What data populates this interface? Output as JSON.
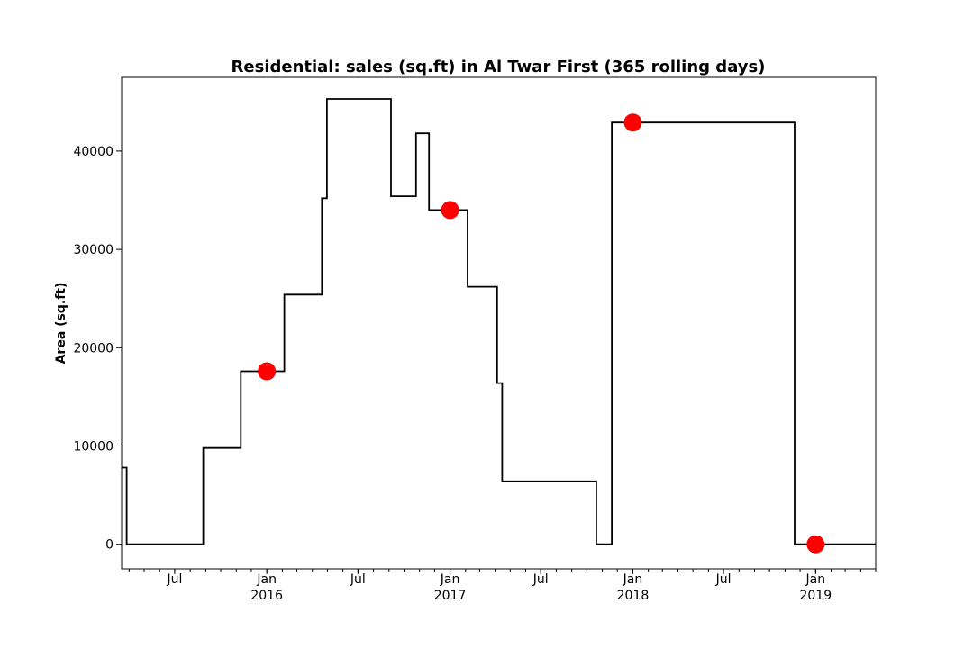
{
  "chart_data": {
    "type": "line",
    "title": "Residential: sales (sq.ft) in Al Twar First (365 rolling days)",
    "xlabel": "",
    "ylabel": "Area (sq.ft)",
    "xlim": [
      "2015-03-17",
      "2019-05-01"
    ],
    "ylim": [
      -2500,
      47500
    ],
    "step_line": {
      "color": "#000000",
      "points": [
        [
          "2015-03-17",
          7800
        ],
        [
          "2015-03-27",
          7800
        ],
        [
          "2015-03-27",
          0
        ],
        [
          "2015-08-27",
          0
        ],
        [
          "2015-08-27",
          9800
        ],
        [
          "2015-11-10",
          9800
        ],
        [
          "2015-11-10",
          17600
        ],
        [
          "2016-02-05",
          17600
        ],
        [
          "2016-02-05",
          25400
        ],
        [
          "2016-04-20",
          25400
        ],
        [
          "2016-04-20",
          35200
        ],
        [
          "2016-04-30",
          35200
        ],
        [
          "2016-04-30",
          45300
        ],
        [
          "2016-09-05",
          45300
        ],
        [
          "2016-09-05",
          35400
        ],
        [
          "2016-10-25",
          35400
        ],
        [
          "2016-10-25",
          41800
        ],
        [
          "2016-11-20",
          41800
        ],
        [
          "2016-11-20",
          34000
        ],
        [
          "2017-02-05",
          34000
        ],
        [
          "2017-02-05",
          26200
        ],
        [
          "2017-04-05",
          26200
        ],
        [
          "2017-04-05",
          16400
        ],
        [
          "2017-04-15",
          16400
        ],
        [
          "2017-04-15",
          6400
        ],
        [
          "2017-10-20",
          6400
        ],
        [
          "2017-10-20",
          0
        ],
        [
          "2017-11-20",
          0
        ],
        [
          "2017-11-20",
          42900
        ],
        [
          "2018-11-20",
          42900
        ],
        [
          "2018-11-20",
          0
        ],
        [
          "2019-05-01",
          0
        ]
      ]
    },
    "markers": {
      "color": "#ff0000",
      "points": [
        [
          "2016-01-01",
          17600
        ],
        [
          "2017-01-01",
          34000
        ],
        [
          "2018-01-01",
          42900
        ],
        [
          "2019-01-01",
          0
        ]
      ]
    },
    "yticks": [
      {
        "value": 0,
        "label": "0"
      },
      {
        "value": 10000,
        "label": "10000"
      },
      {
        "value": 20000,
        "label": "20000"
      },
      {
        "value": 30000,
        "label": "30000"
      },
      {
        "value": 40000,
        "label": "40000"
      }
    ],
    "xticks": [
      {
        "date": "2015-07-01",
        "label": "Jul",
        "year": ""
      },
      {
        "date": "2016-01-01",
        "label": "Jan",
        "year": "2016"
      },
      {
        "date": "2016-07-01",
        "label": "Jul",
        "year": ""
      },
      {
        "date": "2017-01-01",
        "label": "Jan",
        "year": "2017"
      },
      {
        "date": "2017-07-01",
        "label": "Jul",
        "year": ""
      },
      {
        "date": "2018-01-01",
        "label": "Jan",
        "year": "2018"
      },
      {
        "date": "2018-07-01",
        "label": "Jul",
        "year": ""
      },
      {
        "date": "2019-01-01",
        "label": "Jan",
        "year": "2019"
      }
    ],
    "grid": false,
    "legend": "none"
  }
}
